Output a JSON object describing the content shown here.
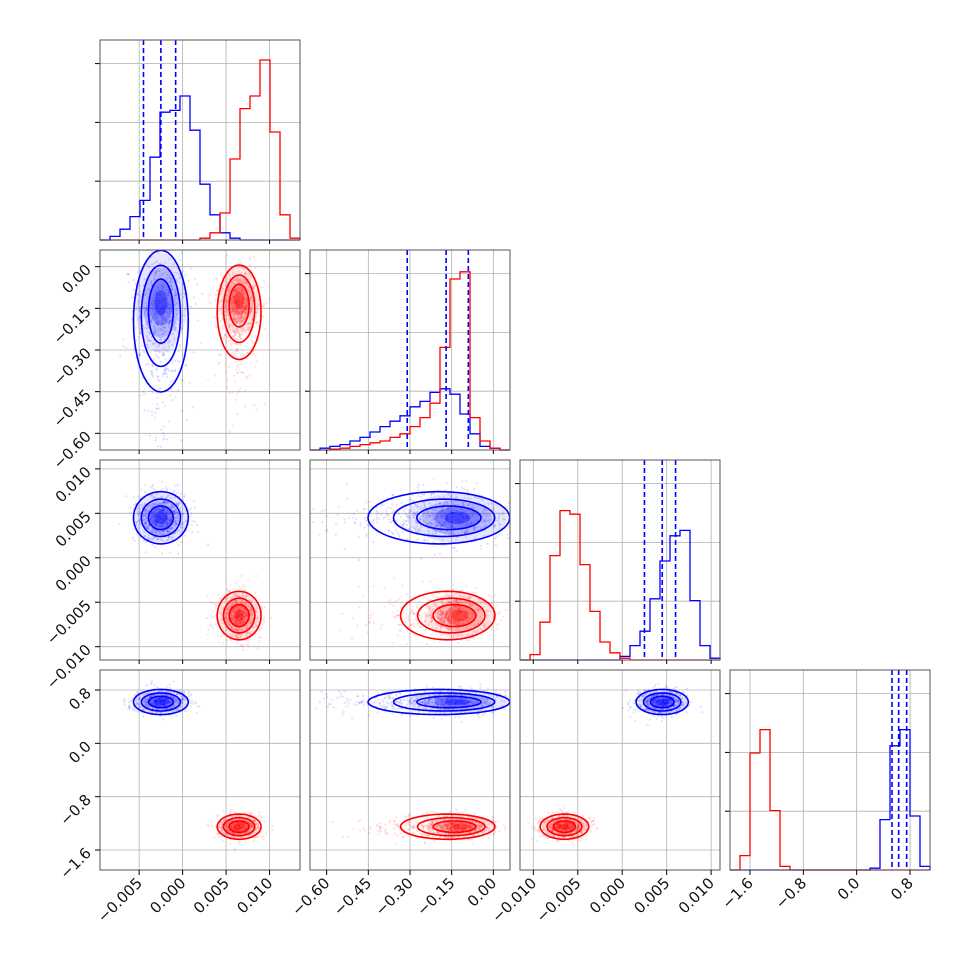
{
  "colors": {
    "series_blue": "#0000ff",
    "series_red": "#ff0000",
    "grid": "#b0b0b0",
    "frame": "#555555"
  },
  "chart_data": {
    "type": "corner",
    "description_of_layout": "lower-triangular 4x4 corner plot",
    "grid": true,
    "legend": "none",
    "series": [
      {
        "color": "#0000ff",
        "means": [
          -0.0025,
          -0.13,
          0.0045,
          0.62
        ],
        "std": [
          0.0015,
          0.09,
          0.0014,
          0.09
        ],
        "quantile_lines": [
          [
            -0.0045,
            -0.0025,
            -0.0008
          ],
          [
            -0.31,
            -0.17,
            -0.09
          ],
          [
            0.0025,
            0.0045,
            0.006
          ],
          [
            0.53,
            0.63,
            0.75
          ]
        ]
      },
      {
        "color": "#ff0000",
        "means": [
          0.0065,
          -0.12,
          -0.0065,
          -1.25
        ],
        "std": [
          0.0012,
          0.06,
          0.0013,
          0.09
        ]
      }
    ],
    "ranges": [
      [
        -0.0095,
        0.0135
      ],
      [
        -0.66,
        0.06
      ],
      [
        -0.0115,
        0.011
      ],
      [
        -1.9,
        1.1
      ]
    ],
    "tick_values": [
      [
        -0.005,
        0.0,
        0.005,
        0.01
      ],
      [
        -0.6,
        -0.45,
        -0.3,
        -0.15,
        0.0
      ],
      [
        -0.01,
        -0.005,
        0.0,
        0.005,
        0.01
      ],
      [
        -1.6,
        -0.8,
        0.0,
        0.8
      ]
    ],
    "tick_labels": [
      [
        "−0.005",
        "0.000",
        "0.005",
        "0.010"
      ],
      [
        "−0.60",
        "−0.45",
        "−0.30",
        "−0.15",
        "0.00"
      ],
      [
        "−0.010",
        "−0.005",
        "0.000",
        "0.005",
        "0.010"
      ],
      [
        "−1.6",
        "−0.8",
        "0.0",
        "0.8"
      ]
    ],
    "histograms": [
      {
        "bins": [
          -0.0095,
          0.0135
        ],
        "blue": [
          0,
          0.02,
          0.06,
          0.13,
          0.22,
          0.46,
          0.71,
          0.72,
          0.8,
          0.61,
          0.31,
          0.14,
          0.04,
          0.01,
          0,
          0,
          0,
          0,
          0,
          0
        ],
        "red": [
          0,
          0,
          0,
          0,
          0,
          0,
          0,
          0,
          0,
          0,
          0.01,
          0.04,
          0.15,
          0.45,
          0.73,
          0.8,
          1.0,
          0.6,
          0.14,
          0.01
        ]
      },
      {
        "bins": [
          -0.66,
          0.06
        ],
        "blue": [
          0,
          0.01,
          0.02,
          0.03,
          0.05,
          0.07,
          0.1,
          0.13,
          0.16,
          0.19,
          0.24,
          0.27,
          0.32,
          0.34,
          0.31,
          0.2,
          0.09,
          0.02,
          0.01,
          0
        ],
        "red": [
          0,
          0,
          0.005,
          0.01,
          0.02,
          0.03,
          0.04,
          0.05,
          0.07,
          0.09,
          0.13,
          0.18,
          0.26,
          0.57,
          0.95,
          0.99,
          0.18,
          0.05,
          0.01,
          0
        ]
      },
      {
        "bins": [
          -0.0115,
          0.011
        ],
        "blue": [
          0,
          0,
          0,
          0,
          0,
          0,
          0,
          0,
          0,
          0,
          0.02,
          0.08,
          0.16,
          0.34,
          0.55,
          0.69,
          0.72,
          0.33,
          0.08,
          0.01
        ],
        "red": [
          0,
          0.03,
          0.21,
          0.58,
          0.83,
          0.81,
          0.53,
          0.27,
          0.1,
          0.04,
          0.01,
          0,
          0,
          0,
          0,
          0,
          0,
          0,
          0,
          0
        ]
      },
      {
        "bins": [
          -1.9,
          1.1
        ],
        "blue": [
          0,
          0,
          0,
          0,
          0,
          0,
          0,
          0,
          0,
          0,
          0,
          0,
          0,
          0,
          0.01,
          0.28,
          0.69,
          0.78,
          0.3,
          0.02
        ],
        "red": [
          0,
          0.08,
          0.65,
          0.78,
          0.33,
          0.02,
          0,
          0,
          0,
          0,
          0,
          0,
          0,
          0,
          0,
          0,
          0,
          0,
          0,
          0
        ]
      }
    ]
  }
}
